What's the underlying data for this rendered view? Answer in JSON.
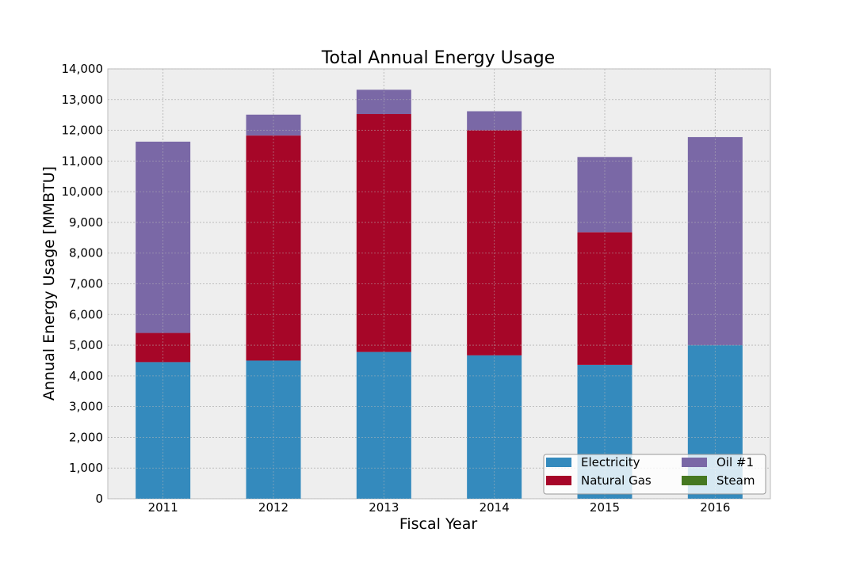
{
  "chart_data": {
    "type": "bar",
    "stacked": true,
    "title": "Total Annual Energy Usage",
    "xlabel": "Fiscal Year",
    "ylabel": "Annual Energy Usage [MMBTU]",
    "categories": [
      "2011",
      "2012",
      "2013",
      "2014",
      "2015",
      "2016"
    ],
    "ylim": [
      0,
      14000
    ],
    "yticks": [
      "0",
      "1,000",
      "2,000",
      "3,000",
      "4,000",
      "5,000",
      "6,000",
      "7,000",
      "8,000",
      "9,000",
      "10,000",
      "11,000",
      "12,000",
      "13,000",
      "14,000"
    ],
    "grid": true,
    "legend_position": "bottom-right",
    "series": [
      {
        "name": "Electricity",
        "color": "#348abd",
        "values": [
          4450,
          4500,
          4780,
          4670,
          4360,
          5000
        ]
      },
      {
        "name": "Natural Gas",
        "color": "#a60628",
        "values": [
          950,
          7330,
          7750,
          7330,
          4320,
          0
        ]
      },
      {
        "name": "Oil #1",
        "color": "#7a68a6",
        "values": [
          6230,
          680,
          790,
          620,
          2450,
          6780
        ]
      },
      {
        "name": "Steam",
        "color": "#467821",
        "values": [
          0,
          0,
          0,
          0,
          0,
          0
        ]
      }
    ]
  }
}
